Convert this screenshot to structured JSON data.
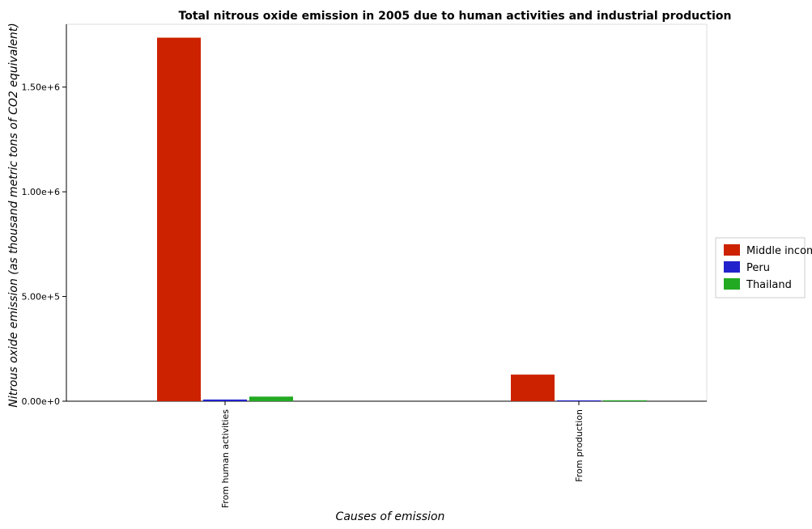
{
  "chart_data": {
    "type": "bar",
    "title": "Total nitrous oxide emission in 2005 due to human activities and industrial production",
    "xlabel": "Causes of emission",
    "ylabel": "Nitrous oxide emission (as thousand metric tons of CO2 equivalent)",
    "categories": [
      "From human activities",
      "From production"
    ],
    "series": [
      {
        "name": "Middle income",
        "color": "#cc2200",
        "values": [
          1736000,
          127000
        ]
      },
      {
        "name": "Peru",
        "color": "#2222cc",
        "values": [
          8000,
          500
        ]
      },
      {
        "name": "Thailand",
        "color": "#22aa22",
        "values": [
          22000,
          4500
        ]
      }
    ],
    "ylim": [
      0,
      1800000
    ],
    "yticks": [
      0,
      500000,
      1000000,
      1500000
    ],
    "ytick_labels": [
      "0.00e+0",
      "5.00e+5",
      "1.00e+6",
      "1.50e+6"
    ],
    "grid": false,
    "legend_position": "right"
  }
}
